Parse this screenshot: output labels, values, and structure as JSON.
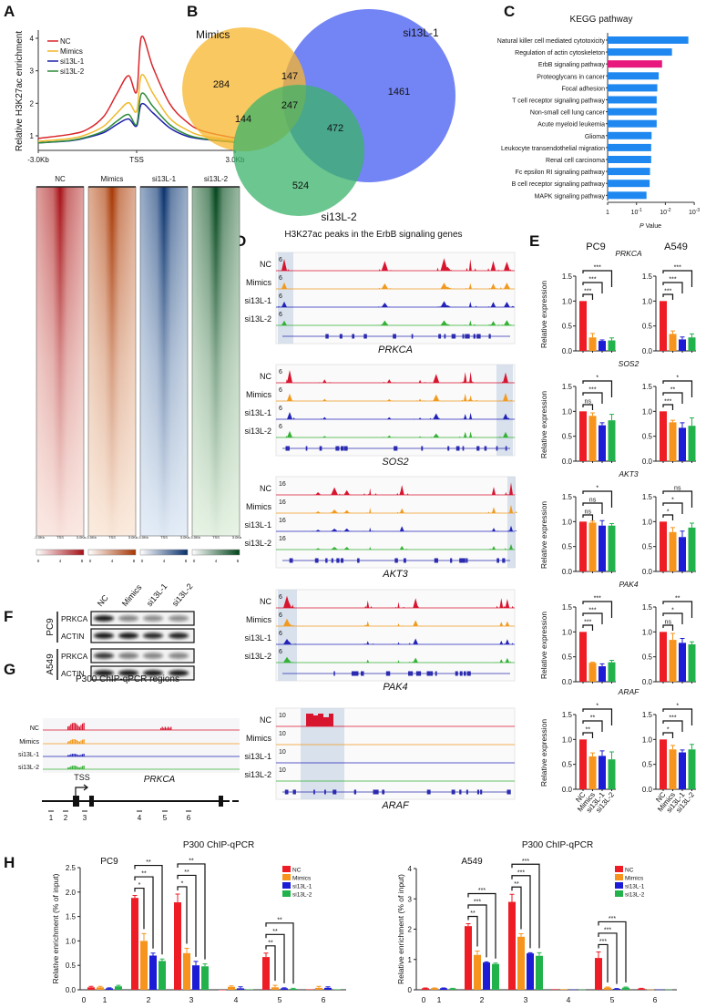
{
  "panel_labels": [
    "A",
    "B",
    "C",
    "D",
    "E",
    "F",
    "G",
    "H"
  ],
  "conditions": [
    "NC",
    "Mimics",
    "si13L-1",
    "si13L-2"
  ],
  "colors": {
    "bars": [
      "#ee1c25",
      "#f7941d",
      "#1c1cd6",
      "#22b24c"
    ],
    "profile_lines": [
      "#d9262b",
      "#f0b929",
      "#1f22a8",
      "#2e8b3a"
    ],
    "tracks": [
      "#d8152f",
      "#f19a1e",
      "#2323b8",
      "#35b135"
    ],
    "kegg_bar": "#1e88f0",
    "kegg_highlight": "#e8177d",
    "track_highlight": "#c9d6e6"
  },
  "chart_data": [
    {
      "panel": "A",
      "type": "line",
      "ylabel": "Relative H3K27ac enrichment",
      "x_tick_labels": [
        "-3.0Kb",
        "TSS",
        "3.0Kb"
      ],
      "y_ticks": [
        1,
        2,
        3,
        4
      ],
      "ylim": [
        0.75,
        4.2
      ],
      "x": [
        -3,
        -2,
        -1.5,
        -1,
        -0.6,
        -0.25,
        0,
        0.15,
        0.5,
        1,
        1.5,
        2,
        3
      ],
      "legend": "top-left",
      "series": [
        {
          "name": "NC",
          "values": [
            0.92,
            1.05,
            1.2,
            1.6,
            2.3,
            2.85,
            2.35,
            4.05,
            3.1,
            2.0,
            1.45,
            1.15,
            0.93
          ]
        },
        {
          "name": "Mimics",
          "values": [
            0.83,
            0.92,
            1.05,
            1.3,
            1.7,
            2.02,
            1.75,
            2.87,
            2.3,
            1.55,
            1.2,
            1.0,
            0.85
          ]
        },
        {
          "name": "si13L-1",
          "values": [
            0.78,
            0.85,
            0.95,
            1.1,
            1.35,
            1.52,
            1.3,
            1.98,
            1.7,
            1.25,
            1.0,
            0.9,
            0.8
          ]
        },
        {
          "name": "si13L-2",
          "values": [
            0.78,
            0.86,
            0.97,
            1.15,
            1.45,
            1.66,
            1.35,
            2.3,
            1.9,
            1.35,
            1.05,
            0.92,
            0.8
          ]
        }
      ]
    },
    {
      "panel": "A",
      "type": "heatmap",
      "columns": [
        "NC",
        "Mimics",
        "si13L-1",
        "si13L-2"
      ],
      "x_tick_labels": [
        "-3.0Kb",
        "TSS",
        "3.0Kb"
      ],
      "colorbar_ticks": [
        "0",
        "4",
        "8"
      ],
      "colorscales": [
        [
          "#fdeee8",
          "#a50f15"
        ],
        [
          "#fdf0e4",
          "#a63603"
        ],
        [
          "#eaf2fb",
          "#08306b"
        ],
        [
          "#edf8ea",
          "#00441b"
        ]
      ]
    },
    {
      "panel": "B",
      "type": "venn",
      "sets": [
        "Mimics",
        "si13L-1",
        "si13L-2"
      ],
      "set_colors": [
        "#f7b52c",
        "#5a6ef2",
        "#3bb36a"
      ],
      "regions": {
        "Mimics_only": "284",
        "si13L-1_only": "1461",
        "si13L-2_only": "524",
        "Mimics_si13L-1": "147",
        "Mimics_si13L-2": "144",
        "si13L-1_si13L-2": "472",
        "all_three": "247"
      },
      "all_three_color": "#e11b22"
    },
    {
      "panel": "C",
      "type": "bar",
      "orientation": "horizontal",
      "title": "KEGG pathway",
      "xlabel_italic": "P",
      "xlabel_rest": " Value",
      "x_scale": "log, reversed",
      "xlim": [
        1,
        0.001
      ],
      "x_ticks": [
        1,
        0.1,
        0.01,
        0.001
      ],
      "x_tick_labels": [
        {
          "base": "1",
          "exp": ""
        },
        {
          "base": "10",
          "exp": "-1"
        },
        {
          "base": "10",
          "exp": "-2"
        },
        {
          "base": "10",
          "exp": "-3"
        }
      ],
      "highlight": "ErbB signaling pathway",
      "categories": [
        "Natural killer cell mediated cytotoxicity",
        "Regulation of actin cytoskeleton",
        "ErbB signaling pathway",
        "Proteoglycans in cancer",
        "Focal adhesion",
        "T cell receptor signaling pathway",
        "Non-small cell lung cancer",
        "Acute myeloid leukemia",
        "Glioma",
        "Leukocyte transendothelial migration",
        "Renal cell carcinoma",
        "Fc epsilon RI signaling pathway",
        "B cell receptor signaling pathway",
        "MAPK signaling pathway"
      ],
      "values": [
        0.0016,
        0.0059,
        0.013,
        0.017,
        0.019,
        0.02,
        0.02,
        0.02,
        0.03,
        0.031,
        0.031,
        0.034,
        0.035,
        0.045
      ]
    },
    {
      "panel": "D",
      "type": "genome-tracks",
      "title": "H3K27ac peaks in the ErbB signaling genes",
      "samples": [
        "NC",
        "Mimics",
        "si13L-1",
        "si13L-2"
      ],
      "genes": [
        {
          "name": "PRKCA",
          "scale": "6"
        },
        {
          "name": "SOS2",
          "scale": "6"
        },
        {
          "name": "AKT3",
          "scale": "16"
        },
        {
          "name": "PAK4",
          "scale": "6"
        },
        {
          "name": "ARAF",
          "scale": "10"
        }
      ]
    },
    {
      "panel": "E",
      "type": "bar",
      "ylabel": "Relative expression",
      "y_tick_labels": [
        "0.0",
        "0.5",
        "1.0",
        "1.5"
      ],
      "ylim": [
        0,
        1.5
      ],
      "categories": [
        "NC",
        "Mimics",
        "si13L-1",
        "si13L-2"
      ],
      "cell_lines": [
        "PC9",
        "A549"
      ],
      "genes": [
        {
          "name": "PRKCA",
          "PC9": {
            "values": [
              1.0,
              0.27,
              0.2,
              0.21
            ],
            "errors": [
              0,
              0.08,
              0.02,
              0.05
            ],
            "sig": [
              "***",
              "***",
              "***"
            ]
          },
          "A549": {
            "values": [
              1.0,
              0.34,
              0.23,
              0.27
            ],
            "errors": [
              0,
              0.06,
              0.05,
              0.07
            ],
            "sig": [
              "***",
              "***",
              "***"
            ]
          }
        },
        {
          "name": "SOS2",
          "PC9": {
            "values": [
              1.0,
              0.91,
              0.72,
              0.82
            ],
            "errors": [
              0,
              0.06,
              0.05,
              0.12
            ],
            "sig": [
              "ns",
              "***",
              "*"
            ]
          },
          "A549": {
            "values": [
              1.0,
              0.78,
              0.67,
              0.71
            ],
            "errors": [
              0,
              0.04,
              0.1,
              0.16
            ],
            "sig": [
              "***",
              "**",
              "*"
            ]
          }
        },
        {
          "name": "AKT3",
          "PC9": {
            "values": [
              1.0,
              0.98,
              0.92,
              0.92
            ],
            "errors": [
              0,
              0.03,
              0.1,
              0.04
            ],
            "sig": [
              "ns",
              "ns",
              "*"
            ]
          },
          "A549": {
            "values": [
              1.0,
              0.79,
              0.69,
              0.88
            ],
            "errors": [
              0,
              0.09,
              0.12,
              0.09
            ],
            "sig": [
              "*",
              "*",
              "ns"
            ]
          }
        },
        {
          "name": "PAK4",
          "PC9": {
            "values": [
              1.0,
              0.38,
              0.31,
              0.39
            ],
            "errors": [
              0,
              0.01,
              0.05,
              0.04
            ],
            "sig": [
              "***",
              "***",
              "***"
            ]
          },
          "A549": {
            "values": [
              1.0,
              0.84,
              0.78,
              0.75
            ],
            "errors": [
              0,
              0.13,
              0.09,
              0.05
            ],
            "sig": [
              "ns",
              "*",
              "**"
            ]
          }
        },
        {
          "name": "ARAF",
          "PC9": {
            "values": [
              1.0,
              0.66,
              0.67,
              0.6
            ],
            "errors": [
              0,
              0.07,
              0.1,
              0.15
            ],
            "sig": [
              "**",
              "**",
              "*"
            ]
          },
          "A549": {
            "values": [
              1.0,
              0.8,
              0.74,
              0.8
            ],
            "errors": [
              0,
              0.08,
              0.05,
              0.1
            ],
            "sig": [
              "*",
              "***",
              "*"
            ]
          }
        }
      ]
    },
    {
      "panel": "F",
      "type": "western-blot",
      "lanes": [
        "NC",
        "Mimics",
        "si13L-1",
        "si13L-2"
      ],
      "blocks": [
        {
          "cell_line": "PC9",
          "rows": [
            {
              "protein": "PRKCA",
              "intensity": [
                1.0,
                0.35,
                0.3,
                0.3
              ]
            },
            {
              "protein": "ACTIN",
              "intensity": [
                1.0,
                1.0,
                0.9,
                0.95
              ]
            }
          ]
        },
        {
          "cell_line": "A549",
          "rows": [
            {
              "protein": "PRKCA",
              "intensity": [
                0.8,
                0.4,
                0.35,
                0.35
              ]
            },
            {
              "protein": "ACTIN",
              "intensity": [
                1.0,
                1.0,
                1.0,
                1.0
              ]
            }
          ]
        }
      ]
    },
    {
      "panel": "G",
      "type": "gene-diagram",
      "title": "P300 ChIP-qPCR regions",
      "samples": [
        "NC",
        "Mimics",
        "si13L-1",
        "si13L-2"
      ],
      "gene": "PRKCA",
      "tss_label": "TSS",
      "regions": [
        "1",
        "2",
        "3",
        "4",
        "5",
        "6"
      ]
    },
    {
      "panel": "H",
      "type": "bar",
      "title": "P300 ChIP-qPCR",
      "cell_line": "PC9",
      "ylabel": "Relative enrichment (% of input)",
      "y_tick_labels": [
        "0.0",
        "0.5",
        "1.0",
        "1.5",
        "2.0",
        "2.5"
      ],
      "ylim": [
        0,
        2.5
      ],
      "x_tick_labels": [
        "0",
        "1",
        "2",
        "3",
        "4",
        "5",
        "6"
      ],
      "legend": "top-right",
      "series_names": [
        "NC",
        "Mimics",
        "si13L-1",
        "si13L-2"
      ],
      "groups": [
        {
          "region": "1",
          "values": [
            0.05,
            0.05,
            0.03,
            0.07
          ],
          "errors": [
            0.02,
            0.02,
            0.01,
            0.02
          ],
          "sig": []
        },
        {
          "region": "2",
          "values": [
            1.88,
            1.0,
            0.7,
            0.59
          ],
          "errors": [
            0.05,
            0.15,
            0.05,
            0.04
          ],
          "sig": [
            "*",
            "**",
            "**"
          ]
        },
        {
          "region": "3",
          "values": [
            1.79,
            0.75,
            0.5,
            0.48
          ],
          "errors": [
            0.17,
            0.1,
            0.08,
            0.05
          ],
          "sig": [
            "*",
            "**",
            "**"
          ]
        },
        {
          "region": "4",
          "values": [
            0.0,
            0.06,
            0.03,
            0.01
          ],
          "errors": [
            0,
            0.02,
            0.03,
            0
          ],
          "sig": []
        },
        {
          "region": "5",
          "values": [
            0.67,
            0.05,
            0.03,
            0.02
          ],
          "errors": [
            0.08,
            0.04,
            0.01,
            0.01
          ],
          "sig": [
            "**",
            "**",
            "**"
          ]
        },
        {
          "region": "6",
          "values": [
            0.01,
            0.04,
            0.04,
            0.01
          ],
          "errors": [
            0,
            0.03,
            0.02,
            0
          ],
          "sig": []
        }
      ]
    },
    {
      "panel": "H",
      "type": "bar",
      "title": "P300 ChIP-qPCR",
      "cell_line": "A549",
      "ylabel": "Relative enrichment (% of input)",
      "y_tick_labels": [
        "0",
        "1",
        "2",
        "3",
        "4"
      ],
      "ylim": [
        0,
        4
      ],
      "x_tick_labels": [
        "0",
        "1",
        "2",
        "3",
        "4",
        "5",
        "6"
      ],
      "legend": "top-right",
      "series_names": [
        "NC",
        "Mimics",
        "si13L-1",
        "si13L-2"
      ],
      "groups": [
        {
          "region": "1",
          "values": [
            0.05,
            0.05,
            0.05,
            0.04
          ],
          "errors": [
            0.01,
            0.01,
            0.01,
            0.01
          ],
          "sig": []
        },
        {
          "region": "2",
          "values": [
            2.1,
            1.15,
            0.9,
            0.85
          ],
          "errors": [
            0.08,
            0.13,
            0.02,
            0.03
          ],
          "sig": [
            "**",
            "***",
            "***"
          ]
        },
        {
          "region": "3",
          "values": [
            2.9,
            1.75,
            1.2,
            1.12
          ],
          "errors": [
            0.25,
            0.1,
            0.02,
            0.1
          ],
          "sig": [
            "**",
            "***",
            "***"
          ]
        },
        {
          "region": "4",
          "values": [
            0.02,
            0.02,
            0.01,
            0.01
          ],
          "errors": [
            0,
            0,
            0,
            0
          ],
          "sig": []
        },
        {
          "region": "5",
          "values": [
            1.05,
            0.07,
            0.03,
            0.07
          ],
          "errors": [
            0.2,
            0.02,
            0.01,
            0.02
          ],
          "sig": [
            "***",
            "***",
            "***"
          ]
        },
        {
          "region": "6",
          "values": [
            0.04,
            0.01,
            0.01,
            0.01
          ],
          "errors": [
            0.01,
            0,
            0,
            0
          ],
          "sig": []
        }
      ]
    }
  ]
}
